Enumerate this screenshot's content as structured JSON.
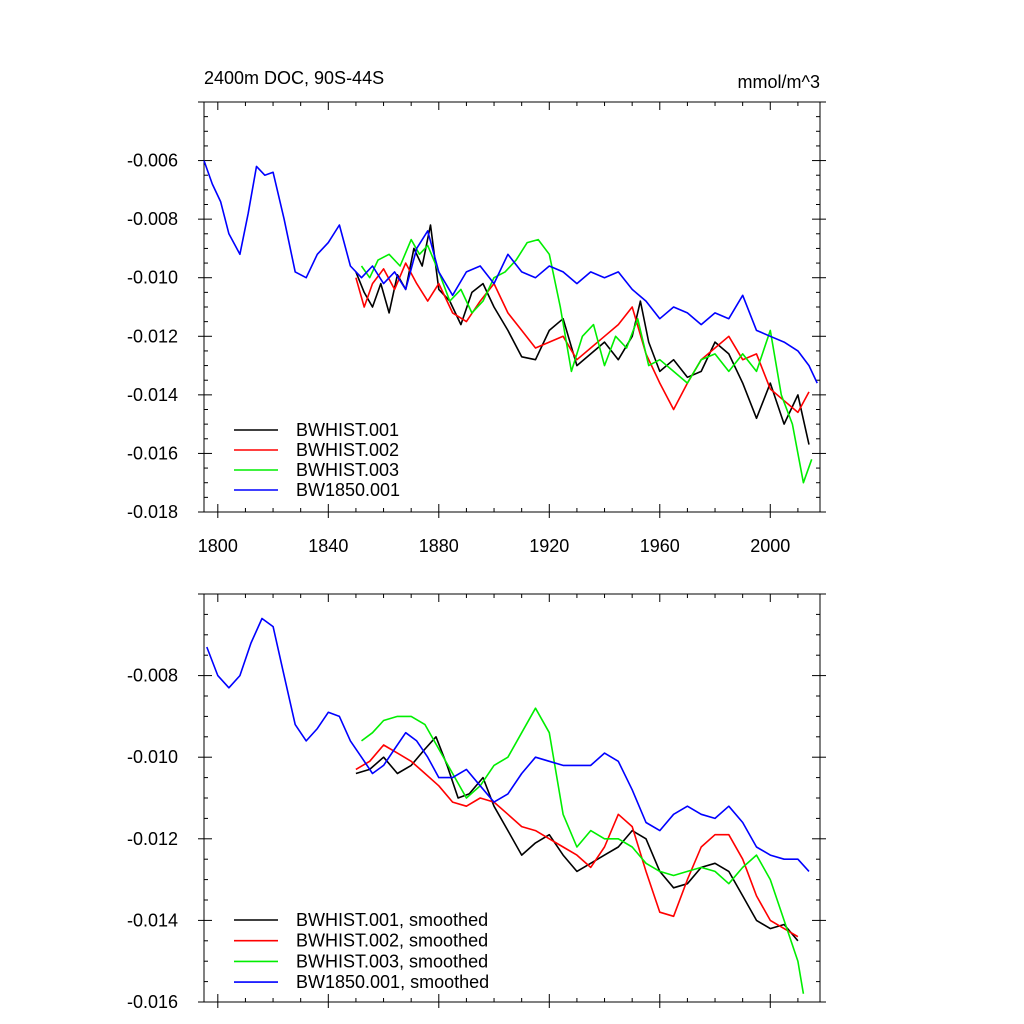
{
  "chart_data": [
    {
      "type": "line",
      "title": "2400m DOC, 90S-44S",
      "units": "mmol/m^3",
      "xlim": [
        1795,
        2018
      ],
      "ylim": [
        -0.018,
        -0.004
      ],
      "xticks": [
        1800,
        1840,
        1880,
        1920,
        1960,
        2000
      ],
      "xtick_labels": [
        "1800",
        "1840",
        "1880",
        "1920",
        "1960",
        "2000"
      ],
      "yticks": [
        -0.018,
        -0.016,
        -0.014,
        -0.012,
        -0.01,
        -0.008,
        -0.006
      ],
      "ytick_labels": [
        "-0.018",
        "-0.016",
        "-0.014",
        "-0.012",
        "-0.010",
        "-0.008",
        "-0.006"
      ],
      "legend_position": "bottom-left",
      "series": [
        {
          "name": "BWHIST.001",
          "color": "#000000",
          "x": [
            1850,
            1853,
            1856,
            1859,
            1862,
            1865,
            1868,
            1871,
            1874,
            1877,
            1880,
            1884,
            1888,
            1892,
            1896,
            1900,
            1905,
            1910,
            1915,
            1920,
            1925,
            1930,
            1935,
            1940,
            1945,
            1950,
            1953,
            1956,
            1960,
            1965,
            1970,
            1975,
            1980,
            1985,
            1990,
            1995,
            2000,
            2005,
            2010,
            2014
          ],
          "y": [
            -0.0098,
            -0.0105,
            -0.011,
            -0.0102,
            -0.0112,
            -0.0099,
            -0.0104,
            -0.009,
            -0.0096,
            -0.0082,
            -0.0104,
            -0.0108,
            -0.0116,
            -0.0105,
            -0.0102,
            -0.011,
            -0.0118,
            -0.0127,
            -0.0128,
            -0.0118,
            -0.0114,
            -0.013,
            -0.0126,
            -0.0122,
            -0.0128,
            -0.012,
            -0.0108,
            -0.0122,
            -0.0132,
            -0.0128,
            -0.0134,
            -0.0132,
            -0.0122,
            -0.0126,
            -0.0136,
            -0.0148,
            -0.0136,
            -0.015,
            -0.014,
            -0.0157
          ]
        },
        {
          "name": "BWHIST.002",
          "color": "#ff0000",
          "x": [
            1850,
            1853,
            1856,
            1860,
            1864,
            1868,
            1872,
            1876,
            1880,
            1885,
            1890,
            1895,
            1900,
            1905,
            1910,
            1915,
            1920,
            1925,
            1930,
            1935,
            1940,
            1945,
            1950,
            1955,
            1960,
            1965,
            1970,
            1975,
            1980,
            1985,
            1990,
            1995,
            2000,
            2005,
            2010,
            2014
          ],
          "y": [
            -0.01,
            -0.011,
            -0.0102,
            -0.0097,
            -0.0104,
            -0.0095,
            -0.0102,
            -0.0108,
            -0.0102,
            -0.0112,
            -0.0115,
            -0.0108,
            -0.0102,
            -0.0112,
            -0.0118,
            -0.0124,
            -0.0122,
            -0.012,
            -0.0128,
            -0.0124,
            -0.012,
            -0.0116,
            -0.011,
            -0.0126,
            -0.0136,
            -0.0145,
            -0.0136,
            -0.0128,
            -0.0124,
            -0.012,
            -0.0128,
            -0.0126,
            -0.0138,
            -0.0142,
            -0.0146,
            -0.0139
          ]
        },
        {
          "name": "BWHIST.003",
          "color": "#00ee00",
          "x": [
            1852,
            1855,
            1858,
            1862,
            1866,
            1870,
            1873,
            1876,
            1880,
            1884,
            1888,
            1892,
            1896,
            1900,
            1904,
            1908,
            1912,
            1916,
            1920,
            1924,
            1928,
            1932,
            1936,
            1940,
            1944,
            1948,
            1952,
            1956,
            1960,
            1965,
            1970,
            1975,
            1980,
            1985,
            1990,
            1995,
            2000,
            2004,
            2008,
            2012,
            2015
          ],
          "y": [
            -0.0096,
            -0.01,
            -0.0094,
            -0.0092,
            -0.0096,
            -0.0087,
            -0.0092,
            -0.0089,
            -0.0098,
            -0.0108,
            -0.0104,
            -0.0112,
            -0.0108,
            -0.01,
            -0.0098,
            -0.0094,
            -0.0088,
            -0.0087,
            -0.0092,
            -0.011,
            -0.0132,
            -0.012,
            -0.0116,
            -0.013,
            -0.012,
            -0.0124,
            -0.0114,
            -0.013,
            -0.0128,
            -0.0132,
            -0.0136,
            -0.0128,
            -0.0126,
            -0.0132,
            -0.0126,
            -0.0132,
            -0.0118,
            -0.014,
            -0.015,
            -0.017,
            -0.0162
          ]
        },
        {
          "name": "BW1850.001",
          "color": "#0000ff",
          "x": [
            1795,
            1798,
            1801,
            1804,
            1808,
            1811,
            1814,
            1817,
            1820,
            1824,
            1828,
            1832,
            1836,
            1840,
            1844,
            1848,
            1852,
            1856,
            1860,
            1864,
            1868,
            1872,
            1876,
            1880,
            1885,
            1890,
            1895,
            1900,
            1905,
            1910,
            1915,
            1920,
            1925,
            1930,
            1935,
            1940,
            1945,
            1950,
            1955,
            1960,
            1965,
            1970,
            1975,
            1980,
            1985,
            1990,
            1995,
            2000,
            2005,
            2010,
            2014,
            2017
          ],
          "y": [
            -0.006,
            -0.0068,
            -0.0074,
            -0.0085,
            -0.0092,
            -0.0078,
            -0.0062,
            -0.0065,
            -0.0064,
            -0.008,
            -0.0098,
            -0.01,
            -0.0092,
            -0.0088,
            -0.0082,
            -0.0096,
            -0.01,
            -0.0096,
            -0.0102,
            -0.0098,
            -0.0104,
            -0.009,
            -0.0084,
            -0.0098,
            -0.0106,
            -0.0098,
            -0.0096,
            -0.0102,
            -0.0092,
            -0.0098,
            -0.01,
            -0.0096,
            -0.0098,
            -0.0102,
            -0.0098,
            -0.01,
            -0.0098,
            -0.0104,
            -0.0108,
            -0.0114,
            -0.011,
            -0.0112,
            -0.0116,
            -0.0112,
            -0.0114,
            -0.0106,
            -0.0118,
            -0.012,
            -0.0122,
            -0.0125,
            -0.013,
            -0.0136
          ]
        }
      ]
    },
    {
      "type": "line",
      "title": "",
      "xlim": [
        1795,
        2018
      ],
      "ylim": [
        -0.016,
        -0.006
      ],
      "xticks": [
        1800,
        1840,
        1880,
        1920,
        1960,
        2000
      ],
      "yticks": [
        -0.016,
        -0.014,
        -0.012,
        -0.01,
        -0.008
      ],
      "ytick_labels": [
        "-0.016",
        "-0.014",
        "-0.012",
        "-0.010",
        "-0.008"
      ],
      "legend_position": "bottom-left",
      "series": [
        {
          "name": "BWHIST.001, smoothed",
          "color": "#000000",
          "x": [
            1850,
            1855,
            1860,
            1865,
            1870,
            1875,
            1879,
            1883,
            1887,
            1891,
            1896,
            1900,
            1905,
            1910,
            1915,
            1920,
            1925,
            1930,
            1935,
            1940,
            1945,
            1950,
            1955,
            1960,
            1965,
            1970,
            1975,
            1980,
            1985,
            1990,
            1995,
            2000,
            2005,
            2010
          ],
          "y": [
            -0.0104,
            -0.0103,
            -0.01,
            -0.0104,
            -0.0102,
            -0.0098,
            -0.0095,
            -0.0102,
            -0.011,
            -0.0109,
            -0.0105,
            -0.0112,
            -0.0118,
            -0.0124,
            -0.0121,
            -0.0119,
            -0.0124,
            -0.0128,
            -0.0126,
            -0.0124,
            -0.0122,
            -0.0118,
            -0.012,
            -0.0128,
            -0.0132,
            -0.0131,
            -0.0127,
            -0.0126,
            -0.0128,
            -0.0134,
            -0.014,
            -0.0142,
            -0.0141,
            -0.0145
          ]
        },
        {
          "name": "BWHIST.002, smoothed",
          "color": "#ff0000",
          "x": [
            1850,
            1855,
            1860,
            1865,
            1870,
            1875,
            1880,
            1885,
            1890,
            1895,
            1900,
            1905,
            1910,
            1915,
            1920,
            1925,
            1930,
            1935,
            1940,
            1945,
            1950,
            1955,
            1960,
            1965,
            1970,
            1975,
            1980,
            1985,
            1990,
            1995,
            2000,
            2005,
            2010
          ],
          "y": [
            -0.0103,
            -0.0101,
            -0.0097,
            -0.0099,
            -0.0101,
            -0.0104,
            -0.0107,
            -0.0111,
            -0.0112,
            -0.011,
            -0.0111,
            -0.0114,
            -0.0117,
            -0.0118,
            -0.012,
            -0.0122,
            -0.0124,
            -0.0127,
            -0.0122,
            -0.0114,
            -0.0117,
            -0.0128,
            -0.0138,
            -0.0139,
            -0.013,
            -0.0122,
            -0.0119,
            -0.0119,
            -0.0125,
            -0.0134,
            -0.014,
            -0.0142,
            -0.0144
          ]
        },
        {
          "name": "BWHIST.003, smoothed",
          "color": "#00ee00",
          "x": [
            1852,
            1856,
            1860,
            1865,
            1870,
            1875,
            1880,
            1885,
            1890,
            1895,
            1900,
            1905,
            1910,
            1915,
            1920,
            1925,
            1930,
            1935,
            1940,
            1945,
            1950,
            1955,
            1960,
            1965,
            1970,
            1975,
            1980,
            1985,
            1990,
            1995,
            2000,
            2005,
            2010,
            2012
          ],
          "y": [
            -0.0096,
            -0.0094,
            -0.0091,
            -0.009,
            -0.009,
            -0.0092,
            -0.0098,
            -0.0104,
            -0.011,
            -0.0107,
            -0.0102,
            -0.01,
            -0.0094,
            -0.0088,
            -0.0094,
            -0.0114,
            -0.0122,
            -0.0118,
            -0.012,
            -0.012,
            -0.0122,
            -0.0126,
            -0.0128,
            -0.0129,
            -0.0128,
            -0.0127,
            -0.0128,
            -0.0131,
            -0.0127,
            -0.0124,
            -0.013,
            -0.014,
            -0.015,
            -0.0158
          ]
        },
        {
          "name": "BW1850.001, smoothed",
          "color": "#0000ff",
          "x": [
            1796,
            1800,
            1804,
            1808,
            1812,
            1816,
            1820,
            1824,
            1828,
            1832,
            1836,
            1840,
            1844,
            1848,
            1852,
            1856,
            1860,
            1864,
            1868,
            1872,
            1876,
            1880,
            1885,
            1890,
            1895,
            1900,
            1905,
            1910,
            1915,
            1920,
            1925,
            1930,
            1935,
            1940,
            1945,
            1950,
            1955,
            1960,
            1965,
            1970,
            1975,
            1980,
            1985,
            1990,
            1995,
            2000,
            2005,
            2010,
            2014
          ],
          "y": [
            -0.0073,
            -0.008,
            -0.0083,
            -0.008,
            -0.0072,
            -0.0066,
            -0.0068,
            -0.008,
            -0.0092,
            -0.0096,
            -0.0093,
            -0.0089,
            -0.009,
            -0.0096,
            -0.01,
            -0.0104,
            -0.0102,
            -0.0098,
            -0.0094,
            -0.0096,
            -0.01,
            -0.0105,
            -0.0105,
            -0.0103,
            -0.0107,
            -0.0111,
            -0.0109,
            -0.0104,
            -0.01,
            -0.0101,
            -0.0102,
            -0.0102,
            -0.0102,
            -0.0099,
            -0.0101,
            -0.0108,
            -0.0116,
            -0.0118,
            -0.0114,
            -0.0112,
            -0.0114,
            -0.0115,
            -0.0112,
            -0.0116,
            -0.0122,
            -0.0124,
            -0.0125,
            -0.0125,
            -0.0128
          ]
        }
      ]
    }
  ]
}
